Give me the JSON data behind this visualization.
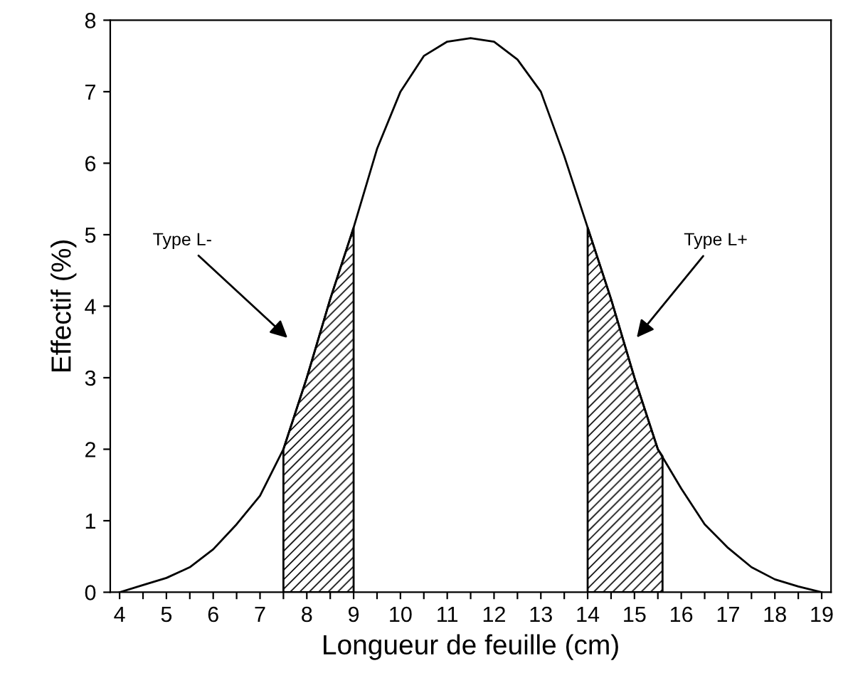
{
  "chart_data": {
    "type": "line",
    "xlabel": "Longueur de feuille (cm)",
    "ylabel": "Effectif (%)",
    "x": [
      4,
      4.5,
      5,
      5.5,
      6,
      6.5,
      7,
      7.5,
      8,
      8.5,
      9,
      9.5,
      10,
      10.5,
      11,
      11.5,
      12,
      12.5,
      13,
      13.5,
      14,
      14.5,
      15,
      15.5,
      16,
      16.5,
      17,
      17.5,
      18,
      18.5,
      19
    ],
    "series": [
      {
        "color": "#000000",
        "values": [
          0,
          0.1,
          0.2,
          0.35,
          0.6,
          0.95,
          1.35,
          2.0,
          3.0,
          4.1,
          5.1,
          6.2,
          7.0,
          7.5,
          7.7,
          7.75,
          7.7,
          7.45,
          7.0,
          6.1,
          5.1,
          4.1,
          3.0,
          2.0,
          1.45,
          0.95,
          0.62,
          0.35,
          0.18,
          0.08,
          0
        ]
      },
      {
        "type": "area",
        "color": "#000000",
        "x": [
          7.5,
          8,
          8.5,
          9
        ],
        "values": [
          2.0,
          3.0,
          4.1,
          5.1
        ]
      },
      {
        "type": "area",
        "color": "#000000",
        "x": [
          14,
          14.5,
          15,
          15.5,
          15.6
        ],
        "values": [
          5.1,
          4.1,
          3.0,
          2.0,
          1.9
        ]
      }
    ],
    "annotations": [
      "Type L-",
      "Type L+"
    ],
    "xlim": [
      3.8,
      19.2
    ],
    "ylim": [
      0,
      8
    ],
    "xticks": [
      4,
      {
        "value": 4.5,
        "label": null
      },
      5,
      {
        "value": 5.5,
        "label": null
      },
      6,
      {
        "value": 6.5,
        "label": null
      },
      7,
      {
        "value": 7.5,
        "label": null
      },
      8,
      {
        "value": 8.5,
        "label": null
      },
      9,
      {
        "value": 9.5,
        "label": null
      },
      10,
      {
        "value": 10.5,
        "label": null
      },
      11,
      {
        "value": 11.5,
        "label": null
      },
      12,
      {
        "value": 12.5,
        "label": null
      },
      13,
      {
        "value": 13.5,
        "label": null
      },
      14,
      {
        "value": 14.5,
        "label": null
      },
      15,
      {
        "value": 15.5,
        "label": null
      },
      16,
      {
        "value": 16.5,
        "label": null
      },
      17,
      {
        "value": 17.5,
        "label": null
      },
      18,
      {
        "value": 18.5,
        "label": null
      },
      19
    ],
    "yticks": [
      0,
      1,
      2,
      3,
      4,
      5,
      6,
      7,
      8
    ],
    "grid": false,
    "legend": false,
    "marker": "none",
    "line_style": "solid"
  }
}
